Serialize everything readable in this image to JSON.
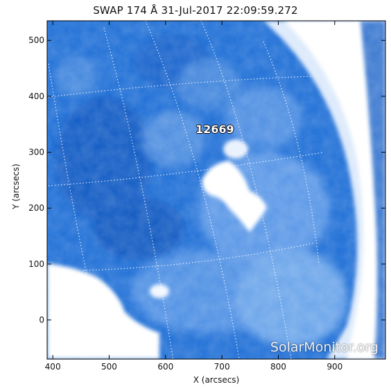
{
  "title": "SWAP 174 Å 31-Jul-2017 22:09:59.272",
  "axes": {
    "xlabel": "X (arcsecs)",
    "ylabel": "Y (arcsecs)",
    "xlim": [
      390,
      990
    ],
    "ylim": [
      -70,
      535
    ],
    "xticks": [
      400,
      500,
      600,
      700,
      800,
      900
    ],
    "yticks": [
      0,
      100,
      200,
      300,
      400,
      500
    ]
  },
  "active_region": {
    "label": "12669"
  },
  "watermark": "SolarMonitor.org",
  "colors": {
    "background_blue": "#1f6fd6",
    "dark_blue": "#0d4fb4",
    "bright_emission": "#ffffff"
  }
}
